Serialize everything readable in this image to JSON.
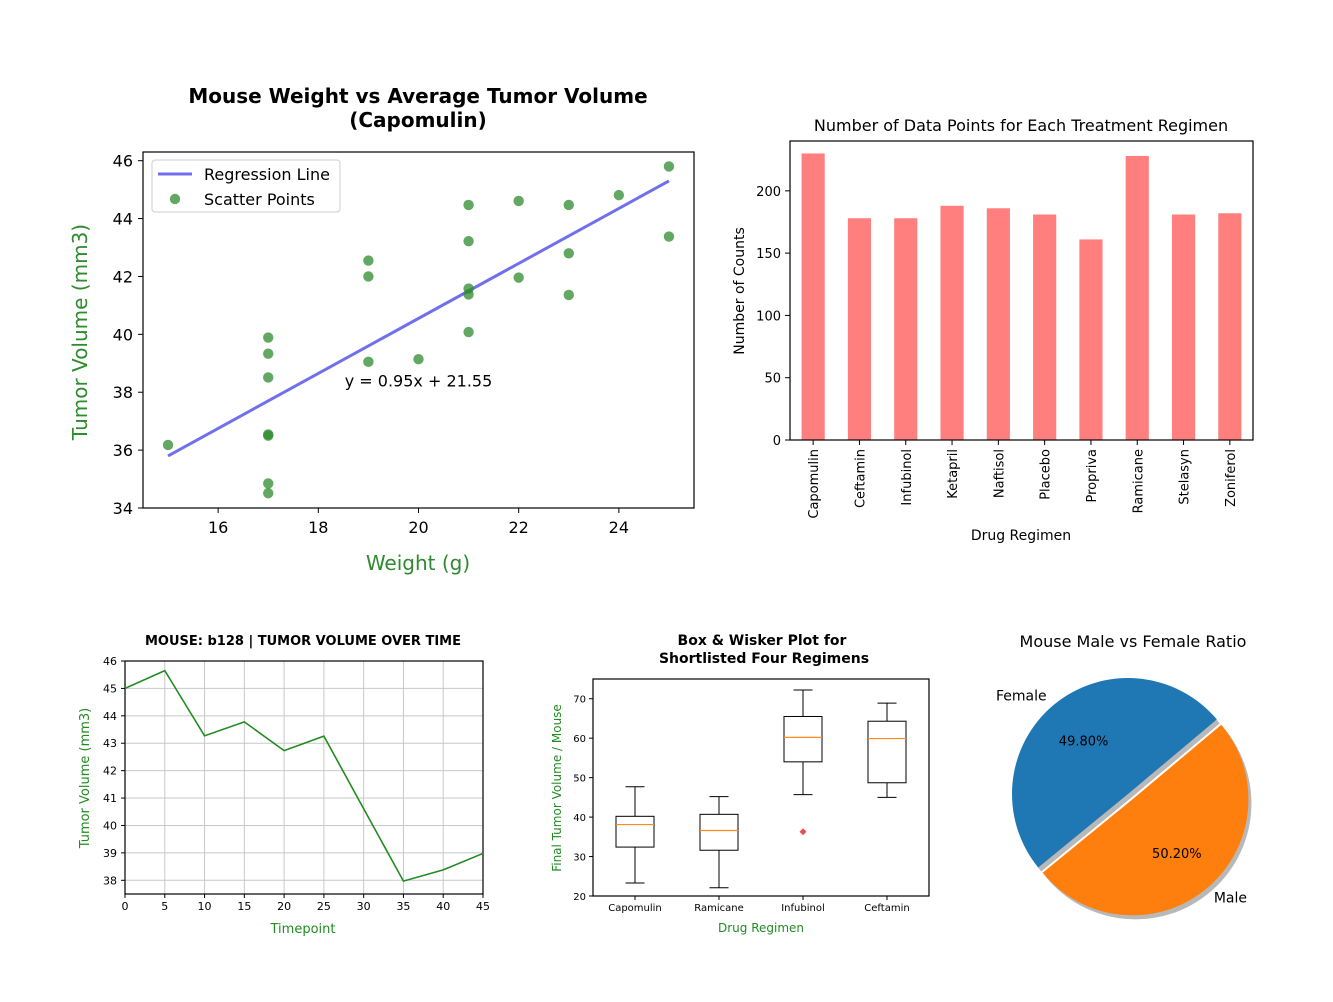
{
  "chart_data": [
    {
      "id": "scatter",
      "type": "scatter",
      "title": "Mouse Weight vs Average Tumor Volume",
      "subtitle": "(Capomulin)",
      "xlabel": "Weight (g)",
      "ylabel": "Tumor Volume (mm3)",
      "xlim": [
        14.5,
        25.5
      ],
      "ylim": [
        34,
        46.3
      ],
      "xticks": [
        16,
        18,
        20,
        22,
        24
      ],
      "yticks": [
        34,
        36,
        38,
        40,
        42,
        44,
        46
      ],
      "points": [
        {
          "x": 15,
          "y": 36.18
        },
        {
          "x": 17,
          "y": 34.85
        },
        {
          "x": 17,
          "y": 34.51
        },
        {
          "x": 17,
          "y": 36.5
        },
        {
          "x": 17,
          "y": 36.54
        },
        {
          "x": 17,
          "y": 38.51
        },
        {
          "x": 17,
          "y": 39.33
        },
        {
          "x": 17,
          "y": 39.89
        },
        {
          "x": 19,
          "y": 39.05
        },
        {
          "x": 19,
          "y": 42.0
        },
        {
          "x": 19,
          "y": 42.55
        },
        {
          "x": 20,
          "y": 39.14
        },
        {
          "x": 21,
          "y": 40.08
        },
        {
          "x": 21,
          "y": 41.38
        },
        {
          "x": 21,
          "y": 41.58
        },
        {
          "x": 21,
          "y": 43.22
        },
        {
          "x": 21,
          "y": 44.47
        },
        {
          "x": 22,
          "y": 41.96
        },
        {
          "x": 22,
          "y": 44.61
        },
        {
          "x": 23,
          "y": 41.36
        },
        {
          "x": 23,
          "y": 42.8
        },
        {
          "x": 23,
          "y": 44.47
        },
        {
          "x": 24,
          "y": 44.81
        },
        {
          "x": 25,
          "y": 43.38
        },
        {
          "x": 25,
          "y": 45.8
        }
      ],
      "regression": {
        "slope": 0.95,
        "intercept": 21.55,
        "x_range": [
          15,
          25
        ]
      },
      "equation": "y = 0.95x + 21.55",
      "equation_pos": {
        "x": 20,
        "y": 38.2
      },
      "legend": {
        "placement": "top-left",
        "line_label": "Regression Line",
        "points_label": "Scatter Points"
      },
      "colors": {
        "points": "#2e8b2e",
        "line": "#7070ee",
        "labels": "#2e8b2e"
      },
      "grid": false
    },
    {
      "id": "bar",
      "type": "bar",
      "title": "Number of Data Points for Each Treatment Regimen",
      "xlabel": "Drug Regimen",
      "ylabel": "Number of Counts",
      "categories": [
        "Capomulin",
        "Ceftamin",
        "Infubinol",
        "Ketapril",
        "Naftisol",
        "Placebo",
        "Propriva",
        "Ramicane",
        "Stelasyn",
        "Zoniferol"
      ],
      "values": [
        230,
        178,
        178,
        188,
        186,
        181,
        161,
        228,
        181,
        182
      ],
      "ylim": [
        0,
        240
      ],
      "yticks": [
        0,
        50,
        100,
        150,
        200
      ],
      "colors": {
        "bar": "#ff7f7f"
      },
      "grid": false
    },
    {
      "id": "line",
      "type": "line",
      "title": "MOUSE: b128 | TUMOR VOLUME OVER TIME",
      "xlabel": "Timepoint",
      "ylabel": "Tumor Volume (mm3)",
      "x": [
        0,
        5,
        10,
        15,
        20,
        25,
        30,
        35,
        40,
        45
      ],
      "y": [
        45.0,
        45.65,
        43.27,
        43.78,
        42.73,
        43.26,
        40.61,
        37.97,
        38.38,
        38.98
      ],
      "xlim": [
        0,
        45
      ],
      "ylim": [
        37.5,
        46
      ],
      "xticks": [
        0,
        5,
        10,
        15,
        20,
        25,
        30,
        35,
        40,
        45
      ],
      "yticks": [
        38,
        39,
        40,
        41,
        42,
        43,
        44,
        45,
        46
      ],
      "colors": {
        "line": "#228b22",
        "labels": "#228b22"
      },
      "grid": true
    },
    {
      "id": "box",
      "type": "box",
      "title": "Box & Wisker Plot for",
      "subtitle": "Shortlisted Four Regimens",
      "xlabel": "Drug Regimen",
      "ylabel": "Final Tumor Volume / Mouse",
      "ylim": [
        20,
        75
      ],
      "yticks": [
        20,
        30,
        40,
        50,
        60,
        70
      ],
      "boxes": [
        {
          "name": "Capomulin",
          "whisker_low": 23.3,
          "q1": 32.4,
          "median": 38.1,
          "q3": 40.2,
          "whisker_high": 47.7,
          "outliers": []
        },
        {
          "name": "Ramicane",
          "whisker_low": 22.1,
          "q1": 31.6,
          "median": 36.6,
          "q3": 40.7,
          "whisker_high": 45.2,
          "outliers": []
        },
        {
          "name": "Infubinol",
          "whisker_low": 45.7,
          "q1": 54.0,
          "median": 60.2,
          "q3": 65.5,
          "whisker_high": 72.2,
          "outliers": [
            36.3
          ]
        },
        {
          "name": "Ceftamin",
          "whisker_low": 45.0,
          "q1": 48.7,
          "median": 59.9,
          "q3": 64.3,
          "whisker_high": 68.9,
          "outliers": []
        }
      ],
      "colors": {
        "median": "#ff8c1a",
        "outlier": "#e85050",
        "labels": "#228b22"
      },
      "grid": false
    },
    {
      "id": "pie",
      "type": "pie",
      "title": "Mouse Male vs Female Ratio",
      "slices": [
        {
          "label": "Female",
          "value": 49.8,
          "pct_label": "49.80%",
          "color": "#1f77b4"
        },
        {
          "label": "Male",
          "value": 50.2,
          "pct_label": "50.20%",
          "color": "#ff7f0e"
        }
      ],
      "start_angle_deg": 40,
      "explode_slice": "Male",
      "shadow": true
    }
  ]
}
